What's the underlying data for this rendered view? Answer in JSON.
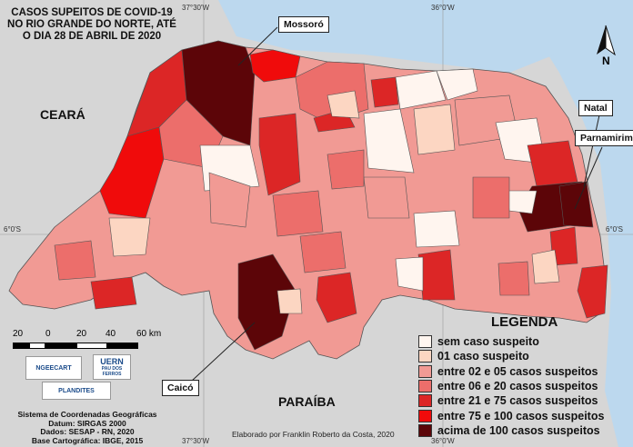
{
  "title": "CASOS SUPEITOS DE COVID-19 NO RIO GRANDE DO NORTE, ATÉ O DIA 28 DE ABRIL DE 2020",
  "states": {
    "ceara": "CEARÁ",
    "paraiba": "PARAÍBA"
  },
  "graticule": {
    "top_left": "37°30'W",
    "top_right": "36°0'W",
    "bottom_left": "37°30'W",
    "bottom_right": "36°0'W",
    "left_lat": "6°0'S",
    "right_lat": "6°0'S"
  },
  "callouts": {
    "mossoro": "Mossoró",
    "natal": "Natal",
    "parnamirim": "Parnamirim",
    "caico": "Caicó"
  },
  "legend": {
    "title": "LEGENDA",
    "items": [
      {
        "label": "sem caso suspeito",
        "color": "#fff5ef"
      },
      {
        "label": "01 caso suspeito",
        "color": "#fcd6c2"
      },
      {
        "label": "entre 02 e 05 casos suspeitos",
        "color": "#f19a94"
      },
      {
        "label": "entre 06 e 20 casos suspeitos",
        "color": "#ec6e6b"
      },
      {
        "label": "entre 21 e 75 casos suspeitos",
        "color": "#dc2626"
      },
      {
        "label": "entre 75 e 100 casos suspeitos",
        "color": "#f00b0b"
      },
      {
        "label": "acima de 100 casos suspeitos",
        "color": "#5c0508"
      }
    ]
  },
  "scale": {
    "ticks": [
      "20",
      "0",
      "20",
      "40",
      "60 km"
    ]
  },
  "logos": {
    "ngeecart": "NGEECART",
    "uern": "UERN",
    "uern_sub": "PAU DOS FERROS",
    "plandites": "PLANDITES"
  },
  "credits": [
    "Sistema de Coordenadas Geográficas",
    "Datum: SIRGAS 2000",
    "Dados: SESAP - RN, 2020",
    "Base Cartográfica: IBGE, 2015"
  ],
  "elaborado": "Elaborado por Franklin Roberto da Costa, 2020",
  "north_label": "N",
  "colors": {
    "land": "#d6d6d6",
    "ocean": "#bcd8ee",
    "border": "#555555"
  }
}
